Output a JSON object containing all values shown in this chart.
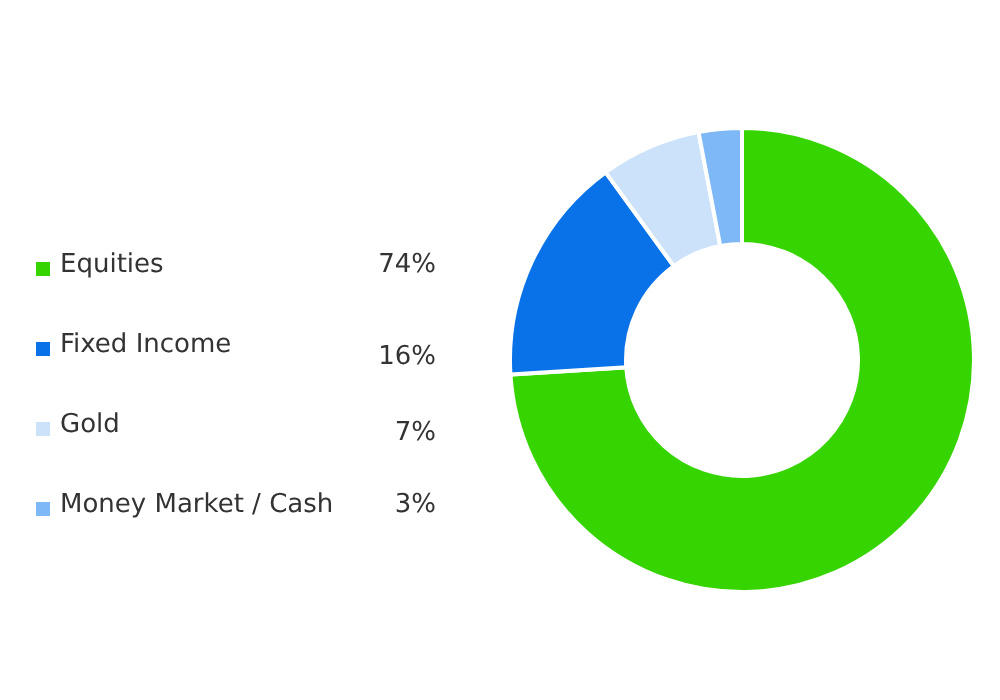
{
  "chart_data": {
    "type": "donut",
    "categories": [
      "Equities",
      "Fixed Income",
      "Gold",
      "Money Market / Cash"
    ],
    "values": [
      74,
      16,
      7,
      3
    ],
    "colors": [
      "#36d400",
      "#0a72e8",
      "#cce2fb",
      "#7fb8f6"
    ],
    "value_labels": [
      "74%",
      "16%",
      "7%",
      "3%"
    ],
    "legend": "left"
  }
}
